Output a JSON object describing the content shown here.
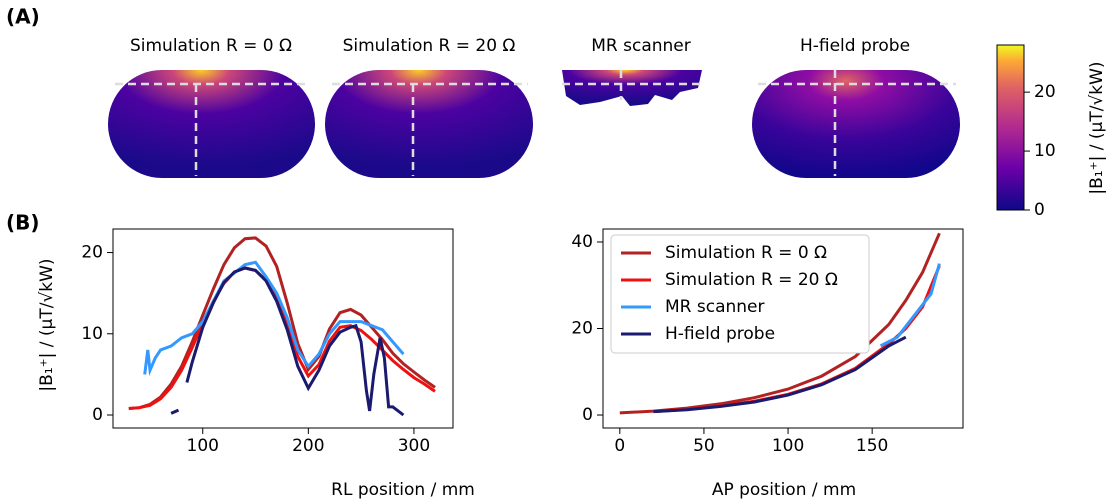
{
  "panel_labels": [
    "(A)",
    "(B)"
  ],
  "maps": {
    "titles": [
      "Simulation R = 0 Ω",
      "Simulation R = 20 Ω",
      "MR scanner",
      "H-field probe"
    ],
    "colorbar": {
      "label": "|B₁⁺| / (μT/√kW)",
      "lim": [
        0,
        28
      ],
      "ticks": [
        0,
        10,
        20
      ]
    }
  },
  "chart_data": [
    {
      "type": "line",
      "xlabel": "RL position / mm",
      "ylabel": "|B₁⁺| / (μT/√kW)",
      "xlim": [
        15,
        337
      ],
      "ylim": [
        -1.6,
        22.9
      ],
      "xticks": [
        100,
        200,
        300
      ],
      "yticks": [
        0,
        10,
        20
      ],
      "legend": "none",
      "series": [
        {
          "name": "Simulation R = 0 Ω",
          "color": "#b22222",
          "x": [
            30,
            40,
            50,
            60,
            70,
            80,
            90,
            100,
            110,
            120,
            130,
            140,
            150,
            160,
            170,
            180,
            190,
            200,
            210,
            220,
            230,
            240,
            250,
            260,
            270,
            280,
            290,
            300,
            310,
            320
          ],
          "values": [
            0.8,
            0.9,
            1.3,
            2.2,
            3.8,
            6,
            9,
            12.3,
            15.5,
            18.5,
            20.6,
            21.7,
            21.8,
            20.8,
            18.3,
            13.8,
            8.8,
            5.6,
            7.2,
            10.6,
            12.6,
            13,
            12.3,
            10.8,
            9.3,
            7.6,
            6.3,
            5.3,
            4.3,
            3.4
          ]
        },
        {
          "name": "Simulation R = 20 Ω",
          "color": "#ee1111",
          "x": [
            30,
            40,
            50,
            60,
            70,
            80,
            90,
            100,
            110,
            120,
            130,
            140,
            150,
            160,
            170,
            180,
            190,
            200,
            210,
            220,
            230,
            240,
            250,
            260,
            270,
            280,
            290,
            300,
            310,
            320
          ],
          "values": [
            0.8,
            0.9,
            1.2,
            2,
            3.4,
            5.5,
            8.3,
            11.3,
            14,
            16.2,
            17.6,
            18.1,
            17.8,
            16.6,
            14.4,
            11.2,
            7.2,
            4.8,
            6.2,
            9.1,
            10.8,
            11,
            10.4,
            9.3,
            8,
            6.7,
            5.6,
            4.6,
            3.8,
            2.9
          ]
        },
        {
          "name": "MR scanner",
          "color": "#3399ff",
          "x": [
            45,
            48,
            50,
            55,
            60,
            70,
            80,
            90,
            100,
            110,
            120,
            130,
            140,
            150,
            160,
            170,
            180,
            190,
            200,
            210,
            220,
            230,
            240,
            250,
            260,
            270,
            280,
            290
          ],
          "values": [
            5,
            8,
            5.5,
            7,
            8,
            8.5,
            9.5,
            10,
            11.5,
            14,
            16.5,
            17.5,
            18.5,
            18.8,
            17,
            15,
            12,
            8,
            6,
            7.5,
            10,
            11.5,
            11.5,
            11.5,
            11,
            10.5,
            9,
            7.5
          ]
        },
        {
          "name": "H-field probe",
          "color": "#1a1a6e",
          "x": [
            70,
            77,
            80,
            85,
            90,
            100,
            110,
            120,
            130,
            140,
            150,
            160,
            170,
            180,
            190,
            200,
            210,
            220,
            230,
            240,
            245,
            250,
            255,
            258,
            262,
            268,
            272,
            276,
            280,
            285,
            290
          ],
          "values": [
            0.2,
            0.6,
            null,
            4,
            6.5,
            10.8,
            13.8,
            16.3,
            17.6,
            18.1,
            17.8,
            16.5,
            14,
            10.5,
            6,
            3.3,
            5.5,
            8.5,
            10.2,
            10.8,
            11,
            9,
            3,
            0.5,
            5,
            9.5,
            7,
            1,
            1,
            0.5,
            0
          ]
        }
      ]
    },
    {
      "type": "line",
      "xlabel": "AP position / mm",
      "xlim": [
        -10,
        204
      ],
      "ylim": [
        -3,
        43
      ],
      "xticks": [
        0,
        50,
        100,
        150
      ],
      "yticks": [
        0,
        20,
        40
      ],
      "legend": "upper left",
      "series": [
        {
          "name": "Simulation R = 0 Ω",
          "color": "#b22222",
          "x": [
            0,
            20,
            40,
            60,
            80,
            100,
            120,
            140,
            160,
            170,
            180,
            190
          ],
          "values": [
            0.5,
            0.9,
            1.6,
            2.6,
            4,
            6,
            9,
            13.5,
            21,
            26.5,
            33,
            42
          ]
        },
        {
          "name": "Simulation R = 20 Ω",
          "color": "#ee1111",
          "x": [
            20,
            40,
            60,
            80,
            100,
            120,
            140,
            160,
            170,
            180,
            190
          ],
          "values": [
            0.8,
            1.3,
            2.1,
            3.2,
            4.8,
            7.2,
            10.8,
            16.5,
            20,
            25,
            34.5
          ]
        },
        {
          "name": "MR scanner",
          "color": "#3399ff",
          "x": [
            155,
            165,
            175,
            185,
            190
          ],
          "values": [
            16,
            18,
            23,
            28,
            35
          ]
        },
        {
          "name": "H-field probe",
          "color": "#1a1a6e",
          "x": [
            20,
            40,
            60,
            80,
            100,
            120,
            140,
            160,
            170
          ],
          "values": [
            0.8,
            1.2,
            2,
            3,
            4.6,
            7,
            10.5,
            16,
            18
          ]
        }
      ]
    }
  ]
}
